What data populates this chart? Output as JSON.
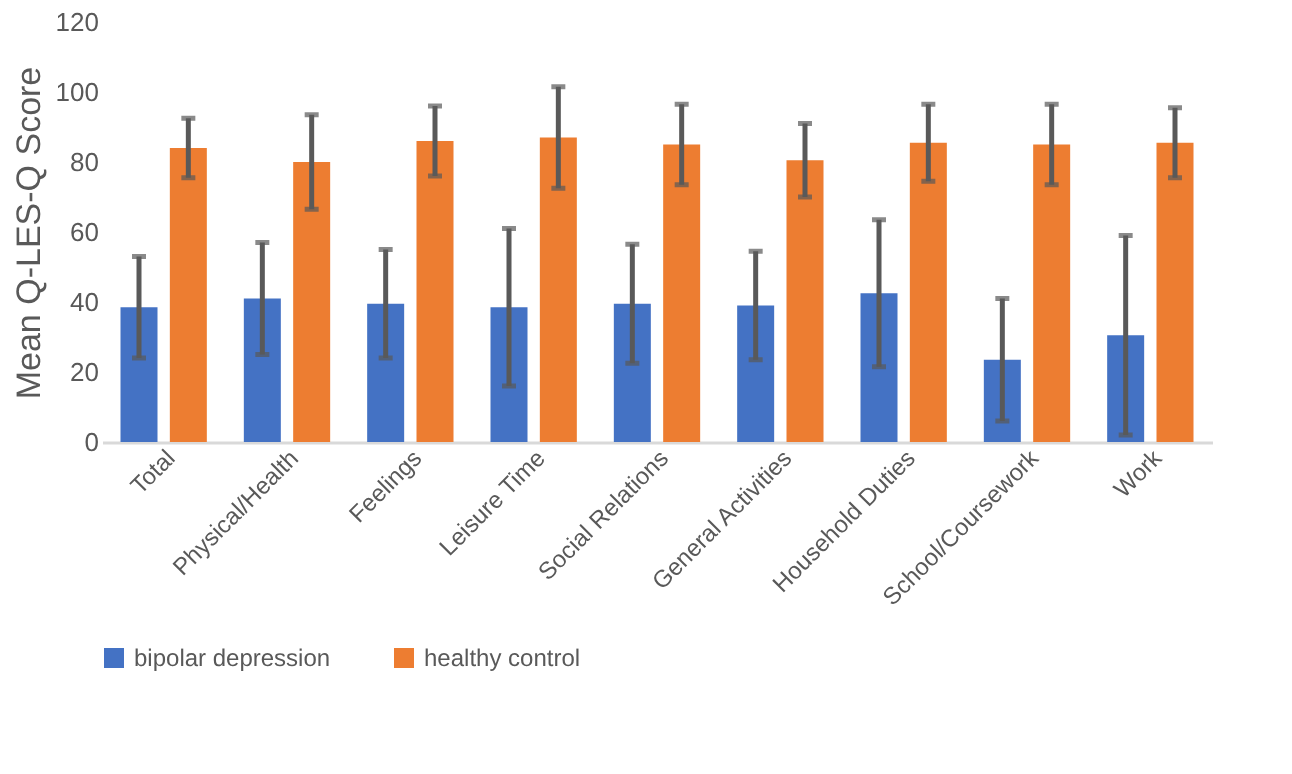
{
  "chart_data": {
    "type": "bar",
    "ylabel": "Mean Q-LES-Q Score",
    "categories": [
      "Total",
      "Physical/Health",
      "Feelings",
      "Leisure Time",
      "Social Relations",
      "General Activities",
      "Household Duties",
      "School/Coursework",
      "Work"
    ],
    "series": [
      {
        "name": "bipolar depression",
        "color": "#4472c4",
        "values": [
          38.5,
          41,
          39.5,
          38.5,
          39.5,
          39,
          42.5,
          23.5,
          30.5
        ],
        "errors": [
          14.5,
          16,
          15.5,
          22.5,
          17,
          15.5,
          21,
          17.5,
          28.5
        ]
      },
      {
        "name": "healthy control",
        "color": "#ed7d31",
        "values": [
          84,
          80,
          86,
          87,
          85,
          80.5,
          85.5,
          85,
          85.5
        ],
        "errors": [
          8.5,
          13.5,
          10,
          14.5,
          11.5,
          10.5,
          11,
          11.5,
          10
        ]
      }
    ],
    "ylim": [
      0,
      120
    ],
    "yticks": [
      0,
      20,
      40,
      60,
      80,
      100,
      120
    ],
    "grid": false,
    "legend": "bottom"
  }
}
